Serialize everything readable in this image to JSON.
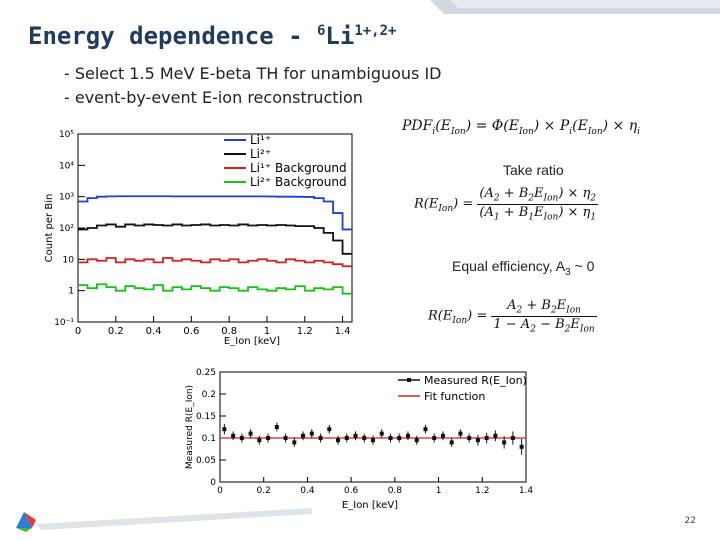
{
  "title": {
    "main": "Energy dependence - ",
    "isotope_mass": "6",
    "isotope_symbol": "Li",
    "charges": "1+,2+"
  },
  "bullets": [
    "- Select 1.5 MeV E-beta TH for unambiguous ID",
    "- event-by-event E-ion reconstruction"
  ],
  "equations": {
    "pdf": "PDF_i(E_Ion) = Φ(E_Ion) × P_i(E_Ion) × η_i",
    "ratio": "R(E_Ion) = (A2 + B2 E_Ion) × η2 / (A1 + B1 E_Ion) × η1",
    "ratio_simplified": "R(E_Ion) = (A2 + B2 E_Ion) / (1 − A2 − B2 E_Ion)"
  },
  "annotations": {
    "take_ratio": "Take ratio",
    "equal_efficiency": "Equal efficiency, A",
    "equal_efficiency_sub": "3",
    "equal_efficiency_tail": " ~ 0"
  },
  "page_number": "22",
  "colors": {
    "title": "#1f3b5c",
    "accent": "#c8d2dc"
  },
  "chart_data": [
    {
      "type": "line",
      "xlabel": "E_Ion [keV]",
      "ylabel": "Count per Bin",
      "xlim": [
        0,
        1.45
      ],
      "ylim": [
        0.1,
        100000
      ],
      "log_y": true,
      "x_ticks": [
        "0",
        "0.2",
        "0.4",
        "0.6",
        "0.8",
        "1",
        "1.2",
        "1.4"
      ],
      "y_ticks": [
        "10⁻¹",
        "1",
        "10",
        "10²",
        "10³",
        "10⁴",
        "10⁵"
      ],
      "legend_position": "top-right",
      "x": [
        0.0,
        0.05,
        0.1,
        0.15,
        0.2,
        0.25,
        0.3,
        0.35,
        0.4,
        0.45,
        0.5,
        0.55,
        0.6,
        0.65,
        0.7,
        0.75,
        0.8,
        0.85,
        0.9,
        0.95,
        1.0,
        1.05,
        1.1,
        1.15,
        1.2,
        1.25,
        1.3,
        1.35,
        1.4
      ],
      "series": [
        {
          "name": "Li¹⁺",
          "color": "#1f3fd6",
          "values": [
            700,
            900,
            1000,
            1020,
            1030,
            1030,
            1030,
            1030,
            1030,
            1030,
            1020,
            1020,
            1020,
            1020,
            1020,
            1020,
            1020,
            1020,
            1020,
            1020,
            1010,
            1000,
            1000,
            990,
            980,
            900,
            700,
            300,
            90
          ]
        },
        {
          "name": "Li²⁺",
          "color": "#111111",
          "values": [
            90,
            100,
            120,
            130,
            110,
            130,
            120,
            130,
            125,
            120,
            130,
            120,
            125,
            130,
            120,
            125,
            120,
            130,
            120,
            125,
            120,
            125,
            120,
            115,
            115,
            100,
            70,
            40,
            15
          ]
        },
        {
          "name": "Li¹⁺ Background",
          "color": "#d42020",
          "values": [
            8,
            10,
            9,
            11,
            8,
            10,
            9,
            10,
            8,
            11,
            9,
            10,
            9,
            8,
            10,
            9,
            10,
            8,
            9,
            10,
            9,
            8,
            10,
            9,
            8,
            9,
            8,
            7,
            6
          ]
        },
        {
          "name": "Li²⁺ Background",
          "color": "#18c018",
          "values": [
            1.5,
            1.2,
            1.6,
            1.3,
            1.0,
            1.4,
            1.2,
            1.1,
            1.5,
            1.0,
            1.3,
            1.1,
            1.4,
            1.2,
            1.0,
            1.3,
            1.2,
            1.0,
            1.3,
            1.1,
            1.0,
            1.2,
            1.1,
            1.4,
            1.0,
            1.2,
            1.1,
            1.3,
            0.8
          ]
        }
      ]
    },
    {
      "type": "scatter",
      "xlabel": "E_Ion [keV]",
      "ylabel": "Measured R(E_Ion)",
      "xlim": [
        0,
        1.4
      ],
      "ylim": [
        0,
        0.25
      ],
      "x_ticks": [
        "0",
        "0.2",
        "0.4",
        "0.6",
        "0.8",
        "1",
        "1.2",
        "1.4"
      ],
      "y_ticks": [
        "0",
        "0.05",
        "0.1",
        "0.15",
        "0.2",
        "0.25"
      ],
      "legend_position": "top-right",
      "series": [
        {
          "name": "Measured R(E_Ion)",
          "color": "#111111",
          "x": [
            0.02,
            0.06,
            0.1,
            0.14,
            0.18,
            0.22,
            0.26,
            0.3,
            0.34,
            0.38,
            0.42,
            0.46,
            0.5,
            0.54,
            0.58,
            0.62,
            0.66,
            0.7,
            0.74,
            0.78,
            0.82,
            0.86,
            0.9,
            0.94,
            0.98,
            1.02,
            1.06,
            1.1,
            1.14,
            1.18,
            1.22,
            1.26,
            1.3,
            1.34,
            1.38
          ],
          "y": [
            0.12,
            0.105,
            0.1,
            0.11,
            0.095,
            0.1,
            0.125,
            0.1,
            0.09,
            0.105,
            0.11,
            0.1,
            0.12,
            0.095,
            0.1,
            0.105,
            0.1,
            0.095,
            0.11,
            0.1,
            0.1,
            0.105,
            0.095,
            0.12,
            0.1,
            0.105,
            0.09,
            0.11,
            0.1,
            0.095,
            0.1,
            0.105,
            0.09,
            0.1,
            0.08
          ],
          "err": [
            0.012,
            0.01,
            0.01,
            0.01,
            0.01,
            0.01,
            0.01,
            0.01,
            0.01,
            0.01,
            0.01,
            0.01,
            0.01,
            0.01,
            0.01,
            0.01,
            0.01,
            0.01,
            0.01,
            0.01,
            0.01,
            0.01,
            0.01,
            0.01,
            0.01,
            0.01,
            0.01,
            0.01,
            0.01,
            0.012,
            0.012,
            0.012,
            0.014,
            0.015,
            0.018
          ]
        },
        {
          "name": "Fit function",
          "color": "#d42020",
          "x": [
            0,
            1.4
          ],
          "y": [
            0.1,
            0.1
          ]
        }
      ]
    }
  ]
}
